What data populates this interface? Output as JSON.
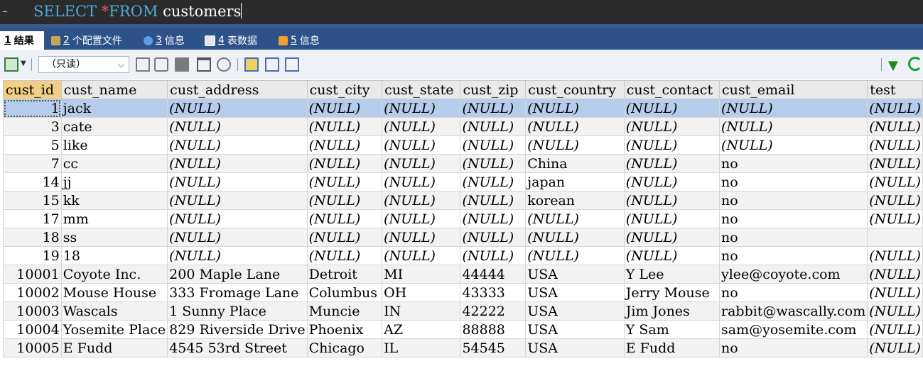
{
  "editor": {
    "kw_select": "SELECT",
    "op_star": "*",
    "kw_from": "FROM",
    "table": "customers"
  },
  "tabs": [
    {
      "num": "1",
      "label": "结果"
    },
    {
      "num": "2",
      "label": "个配置文件"
    },
    {
      "num": "3",
      "label": "信息"
    },
    {
      "num": "4",
      "label": "表数据"
    },
    {
      "num": "5",
      "label": "信息"
    }
  ],
  "toolbar": {
    "mode_select": "（只读）"
  },
  "icons": {
    "export": "export-icon",
    "filter": "filter-icon",
    "refresh": "refresh-icon",
    "delete": "trash-icon",
    "save": "save-icon",
    "grid_view": "grid-view-icon",
    "form_view": "form-view-icon",
    "text_view": "text-view-icon"
  },
  "colors": {
    "keyword": "#4fa9d8",
    "tab_bar": "#2d5289",
    "selected_row": "#b5ccec",
    "sorted_header": "#f3cf86"
  },
  "grid": {
    "columns": [
      "cust_id",
      "cust_name",
      "cust_address",
      "cust_city",
      "cust_state",
      "cust_zip",
      "cust_country",
      "cust_contact",
      "cust_email",
      "test"
    ],
    "rows": [
      [
        "1",
        "jack",
        "(NULL)",
        "(NULL)",
        "(NULL)",
        "(NULL)",
        "(NULL)",
        "(NULL)",
        "(NULL)",
        "(NULL)"
      ],
      [
        "3",
        "cate",
        "(NULL)",
        "(NULL)",
        "(NULL)",
        "(NULL)",
        "(NULL)",
        "(NULL)",
        "(NULL)",
        "(NULL)"
      ],
      [
        "5",
        "like",
        "(NULL)",
        "(NULL)",
        "(NULL)",
        "(NULL)",
        "(NULL)",
        "(NULL)",
        "(NULL)",
        "(NULL)"
      ],
      [
        "7",
        "cc",
        "(NULL)",
        "(NULL)",
        "(NULL)",
        "(NULL)",
        "China",
        "(NULL)",
        "no",
        "(NULL)"
      ],
      [
        "14",
        "jj",
        "(NULL)",
        "(NULL)",
        "(NULL)",
        "(NULL)",
        "japan",
        "(NULL)",
        "no",
        "(NULL)"
      ],
      [
        "15",
        "kk",
        "(NULL)",
        "(NULL)",
        "(NULL)",
        "(NULL)",
        "korean",
        "(NULL)",
        "no",
        "(NULL)"
      ],
      [
        "17",
        "mm",
        "(NULL)",
        "(NULL)",
        "(NULL)",
        "(NULL)",
        "(NULL)",
        "(NULL)",
        "no",
        "(NULL)"
      ],
      [
        "18",
        "ss",
        "(NULL)",
        "(NULL)",
        "(NULL)",
        "(NULL)",
        "(NULL)",
        "(NULL)",
        "no",
        ""
      ],
      [
        "19",
        "18",
        "(NULL)",
        "(NULL)",
        "(NULL)",
        "(NULL)",
        "(NULL)",
        "(NULL)",
        "no",
        "(NULL)"
      ],
      [
        "10001",
        "Coyote Inc.",
        "200 Maple Lane",
        "Detroit",
        "MI",
        "44444",
        "USA",
        "Y Lee",
        "ylee@coyote.com",
        "(NULL)"
      ],
      [
        "10002",
        "Mouse House",
        "333 Fromage Lane",
        "Columbus",
        "OH",
        "43333",
        "USA",
        "Jerry Mouse",
        "no",
        "(NULL)"
      ],
      [
        "10003",
        "Wascals",
        "1 Sunny Place",
        "Muncie",
        "IN",
        "42222",
        "USA",
        "Jim Jones",
        "rabbit@wascally.com",
        "(NULL)"
      ],
      [
        "10004",
        "Yosemite Place",
        "829 Riverside Drive",
        "Phoenix",
        "AZ",
        "88888",
        "USA",
        "Y Sam",
        "sam@yosemite.com",
        "(NULL)"
      ],
      [
        "10005",
        "E Fudd",
        "4545 53rd Street",
        "Chicago",
        "IL",
        "54545",
        "USA",
        "E Fudd",
        "no",
        "(NULL)"
      ]
    ]
  }
}
